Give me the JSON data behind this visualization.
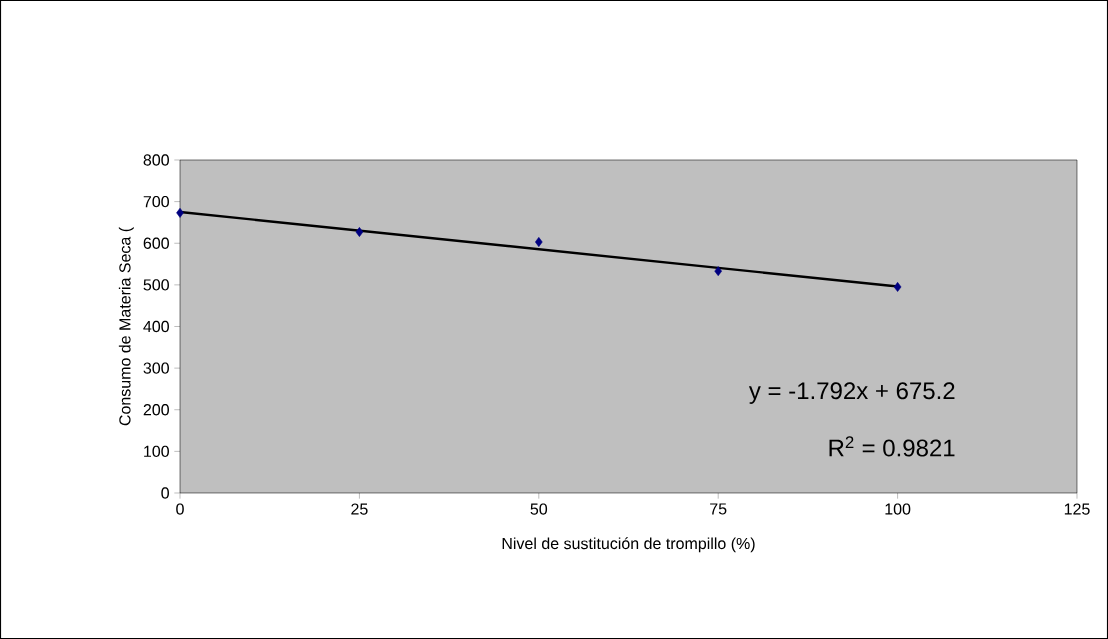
{
  "chart_data": {
    "type": "scatter",
    "xlabel": "Nivel de sustitución de trompillo (%)",
    "ylabel": "Consumo de Materia Seca (",
    "x": [
      0,
      25,
      50,
      75,
      100
    ],
    "series": [
      {
        "color": "#000080",
        "values": [
          673,
          627,
          603,
          533,
          495
        ],
        "marker": "diamond"
      },
      {
        "type": "line",
        "color": "#000000",
        "x": [
          0,
          100
        ],
        "values": [
          675,
          496
        ],
        "marker": "none",
        "line_style": "solid"
      }
    ],
    "xlim": [
      0,
      125
    ],
    "xticks": [
      0,
      25,
      50,
      75,
      100,
      125
    ],
    "ylim": [
      0,
      800
    ],
    "yticks": [
      0,
      100,
      200,
      300,
      400,
      500,
      600,
      700,
      800
    ],
    "grid": false,
    "annotations": [
      "y = -1.792x + 675.2",
      "R$^{2}$ = 0.9821"
    ]
  }
}
